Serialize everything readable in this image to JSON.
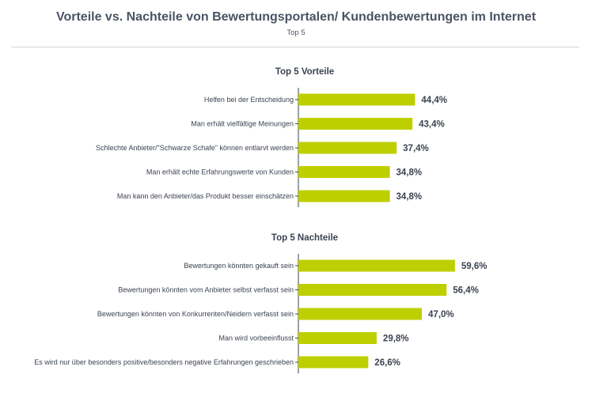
{
  "header": {
    "title": "Vorteile vs. Nachteile von Bewertungsportalen/ Kundenbewertungen im Internet",
    "subtitle": "Top 5"
  },
  "colors": {
    "bar": "#becf00",
    "axis": "#3b4350",
    "text": "#3b4350"
  },
  "chart_data": [
    {
      "type": "bar",
      "orientation": "horizontal",
      "title": "Top 5 Vorteile",
      "categories": [
        "Helfen bei der Entscheidung",
        "Man erhält vielfältige Meinungen",
        "Schlechte Anbieter/\"Schwarze Schafe\" können entlarvt werden",
        "Man erhält echte Erfahrungswerte von Kunden",
        "Man kann den Anbieter/das Produkt besser einschätzen"
      ],
      "values": [
        44.4,
        43.4,
        37.4,
        34.8,
        34.8
      ],
      "value_labels": [
        "44,4%",
        "43,4%",
        "37,4%",
        "34,8%",
        "34,8%"
      ],
      "unit": "%",
      "xlim": [
        0,
        100
      ]
    },
    {
      "type": "bar",
      "orientation": "horizontal",
      "title": "Top 5 Nachteile",
      "categories": [
        "Bewertungen könnten gekauft sein",
        "Bewertungen könnten vom Anbieter selbst verfasst sein",
        "Bewertungen könnten von Konkurrenten/Neidern verfasst sein",
        "Man wird vorbeeinflusst",
        "Es wird nur über besonders positive/besonders negative Erfahrungen geschrieben"
      ],
      "values": [
        59.6,
        56.4,
        47.0,
        29.8,
        26.6
      ],
      "value_labels": [
        "59,6%",
        "56,4%",
        "47,0%",
        "29,8%",
        "26,6%"
      ],
      "unit": "%",
      "xlim": [
        0,
        100
      ]
    }
  ]
}
